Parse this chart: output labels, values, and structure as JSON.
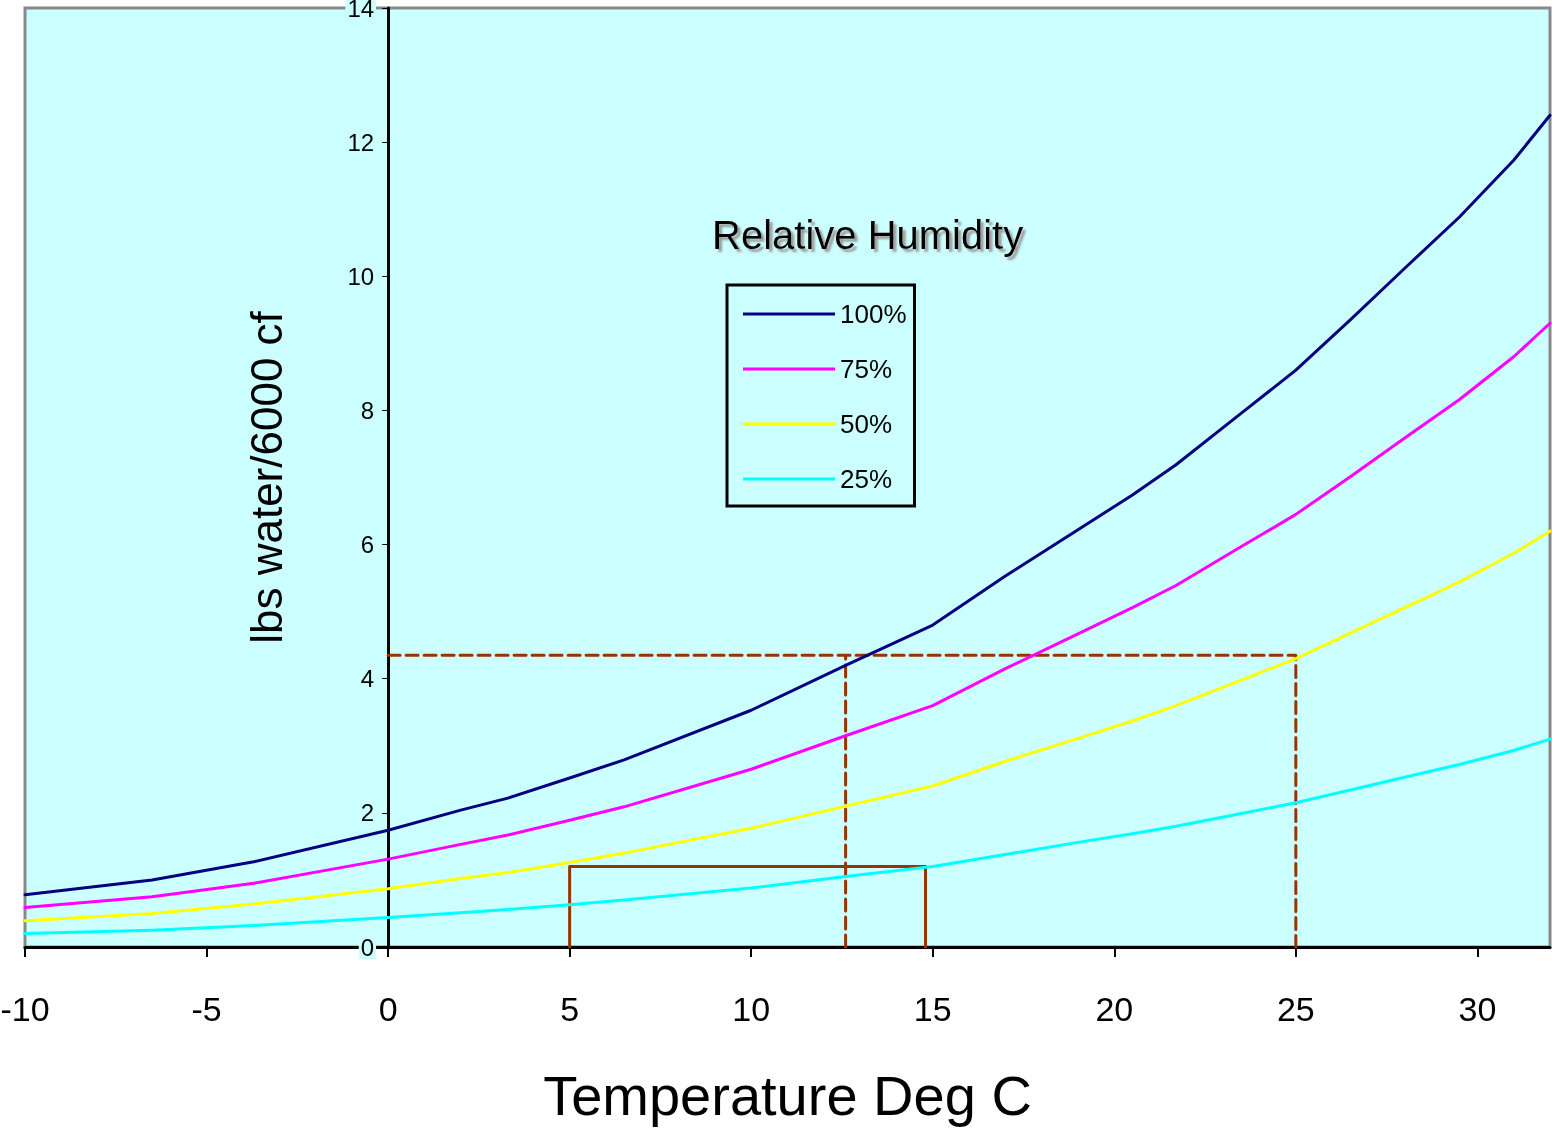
{
  "chart_data": {
    "type": "line",
    "xlabel": "Temperature Deg C",
    "ylabel": "lbs water/6000 cf",
    "legend_title": "Relative Humidity",
    "x": [
      -10,
      -6.5,
      -3.7,
      0,
      2,
      3.3,
      5,
      6.5,
      10,
      12.6,
      15,
      17,
      19,
      20.5,
      21.7,
      23.5,
      25,
      26.5,
      28,
      29.5,
      31,
      32
    ],
    "xlim": [
      -10,
      32
    ],
    "xticks": [
      -10,
      -5,
      0,
      5,
      10,
      15,
      20,
      25,
      30
    ],
    "ylim": [
      0,
      14
    ],
    "yticks": [
      0,
      2,
      4,
      6,
      8,
      10,
      12,
      14
    ],
    "grid": false,
    "legend": "top",
    "marker": "none",
    "line_style": "solid",
    "series": [
      {
        "name": "100%",
        "color": "#000080",
        "values": [
          0.78,
          1.0,
          1.27,
          1.74,
          2.04,
          2.22,
          2.52,
          2.79,
          3.53,
          4.2,
          4.8,
          5.53,
          6.22,
          6.74,
          7.19,
          7.96,
          8.6,
          9.35,
          10.12,
          10.88,
          11.73,
          12.4
        ]
      },
      {
        "name": "75%",
        "color": "#ff00ff",
        "values": [
          0.59,
          0.75,
          0.95,
          1.31,
          1.53,
          1.67,
          1.89,
          2.09,
          2.65,
          3.15,
          3.6,
          4.15,
          4.67,
          5.06,
          5.39,
          5.97,
          6.45,
          7.01,
          7.59,
          8.16,
          8.8,
          9.3
        ]
      },
      {
        "name": "50%",
        "color": "#ffff00",
        "values": [
          0.39,
          0.5,
          0.64,
          0.87,
          1.02,
          1.11,
          1.26,
          1.4,
          1.77,
          2.1,
          2.4,
          2.77,
          3.11,
          3.37,
          3.6,
          3.98,
          4.3,
          4.68,
          5.06,
          5.44,
          5.87,
          6.2
        ]
      },
      {
        "name": "25%",
        "color": "#00ffff",
        "values": [
          0.2,
          0.25,
          0.32,
          0.44,
          0.51,
          0.56,
          0.63,
          0.7,
          0.88,
          1.05,
          1.2,
          1.38,
          1.56,
          1.69,
          1.8,
          1.99,
          2.15,
          2.34,
          2.53,
          2.72,
          2.93,
          3.1
        ]
      },
      {
        "type": "line",
        "color": "#993300",
        "line_style": "dashed",
        "x": [
          0,
          25,
          25
        ],
        "values": [
          4.35,
          4.35,
          0
        ]
      },
      {
        "type": "line",
        "color": "#993300",
        "line_style": "dashed",
        "x": [
          12.6,
          12.6
        ],
        "values": [
          0,
          4.35
        ]
      },
      {
        "type": "line",
        "color": "#993300",
        "line_style": "solid",
        "x": [
          5,
          5,
          14.8,
          14.8
        ],
        "values": [
          0,
          1.2,
          1.2,
          0
        ]
      }
    ]
  }
}
